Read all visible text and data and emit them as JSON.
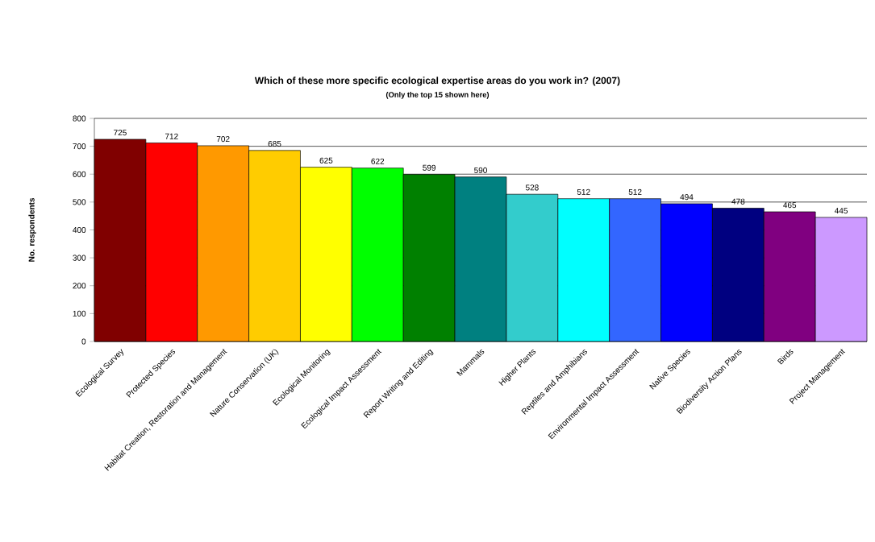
{
  "chart_data": {
    "type": "bar",
    "title": "Which of these more specific ecological expertise areas do you work in? (2007)",
    "subtitle": "(Only the top 15 shown here)",
    "ylabel": "No. respondents",
    "categories": [
      "Ecological Survey",
      "Protected Species",
      "Habitat Creation, Restoration and Management",
      "Nature Conservation (UK)",
      "Ecological Monitoring",
      "Ecological Impact Assessment",
      "Report Writing and Editing",
      "Mammals",
      "Higher Plants",
      "Reptiles and Amphibians",
      "Environmental Impact Assessment",
      "Native Species",
      "Biodiversity Action Plans",
      "Birds",
      "Project Management"
    ],
    "values": [
      725,
      712,
      702,
      685,
      625,
      622,
      599,
      590,
      528,
      512,
      512,
      494,
      478,
      465,
      445
    ],
    "colors": [
      "#800000",
      "#ff0000",
      "#ff9900",
      "#ffcc00",
      "#ffff00",
      "#00ff00",
      "#008000",
      "#008080",
      "#33cccc",
      "#00ffff",
      "#3366ff",
      "#0000ff",
      "#000080",
      "#800080",
      "#cc99ff"
    ],
    "ylim": [
      0,
      800
    ],
    "yticks": [
      0,
      100,
      200,
      300,
      400,
      500,
      600,
      700,
      800
    ],
    "grid": "y",
    "data_labels": true
  }
}
